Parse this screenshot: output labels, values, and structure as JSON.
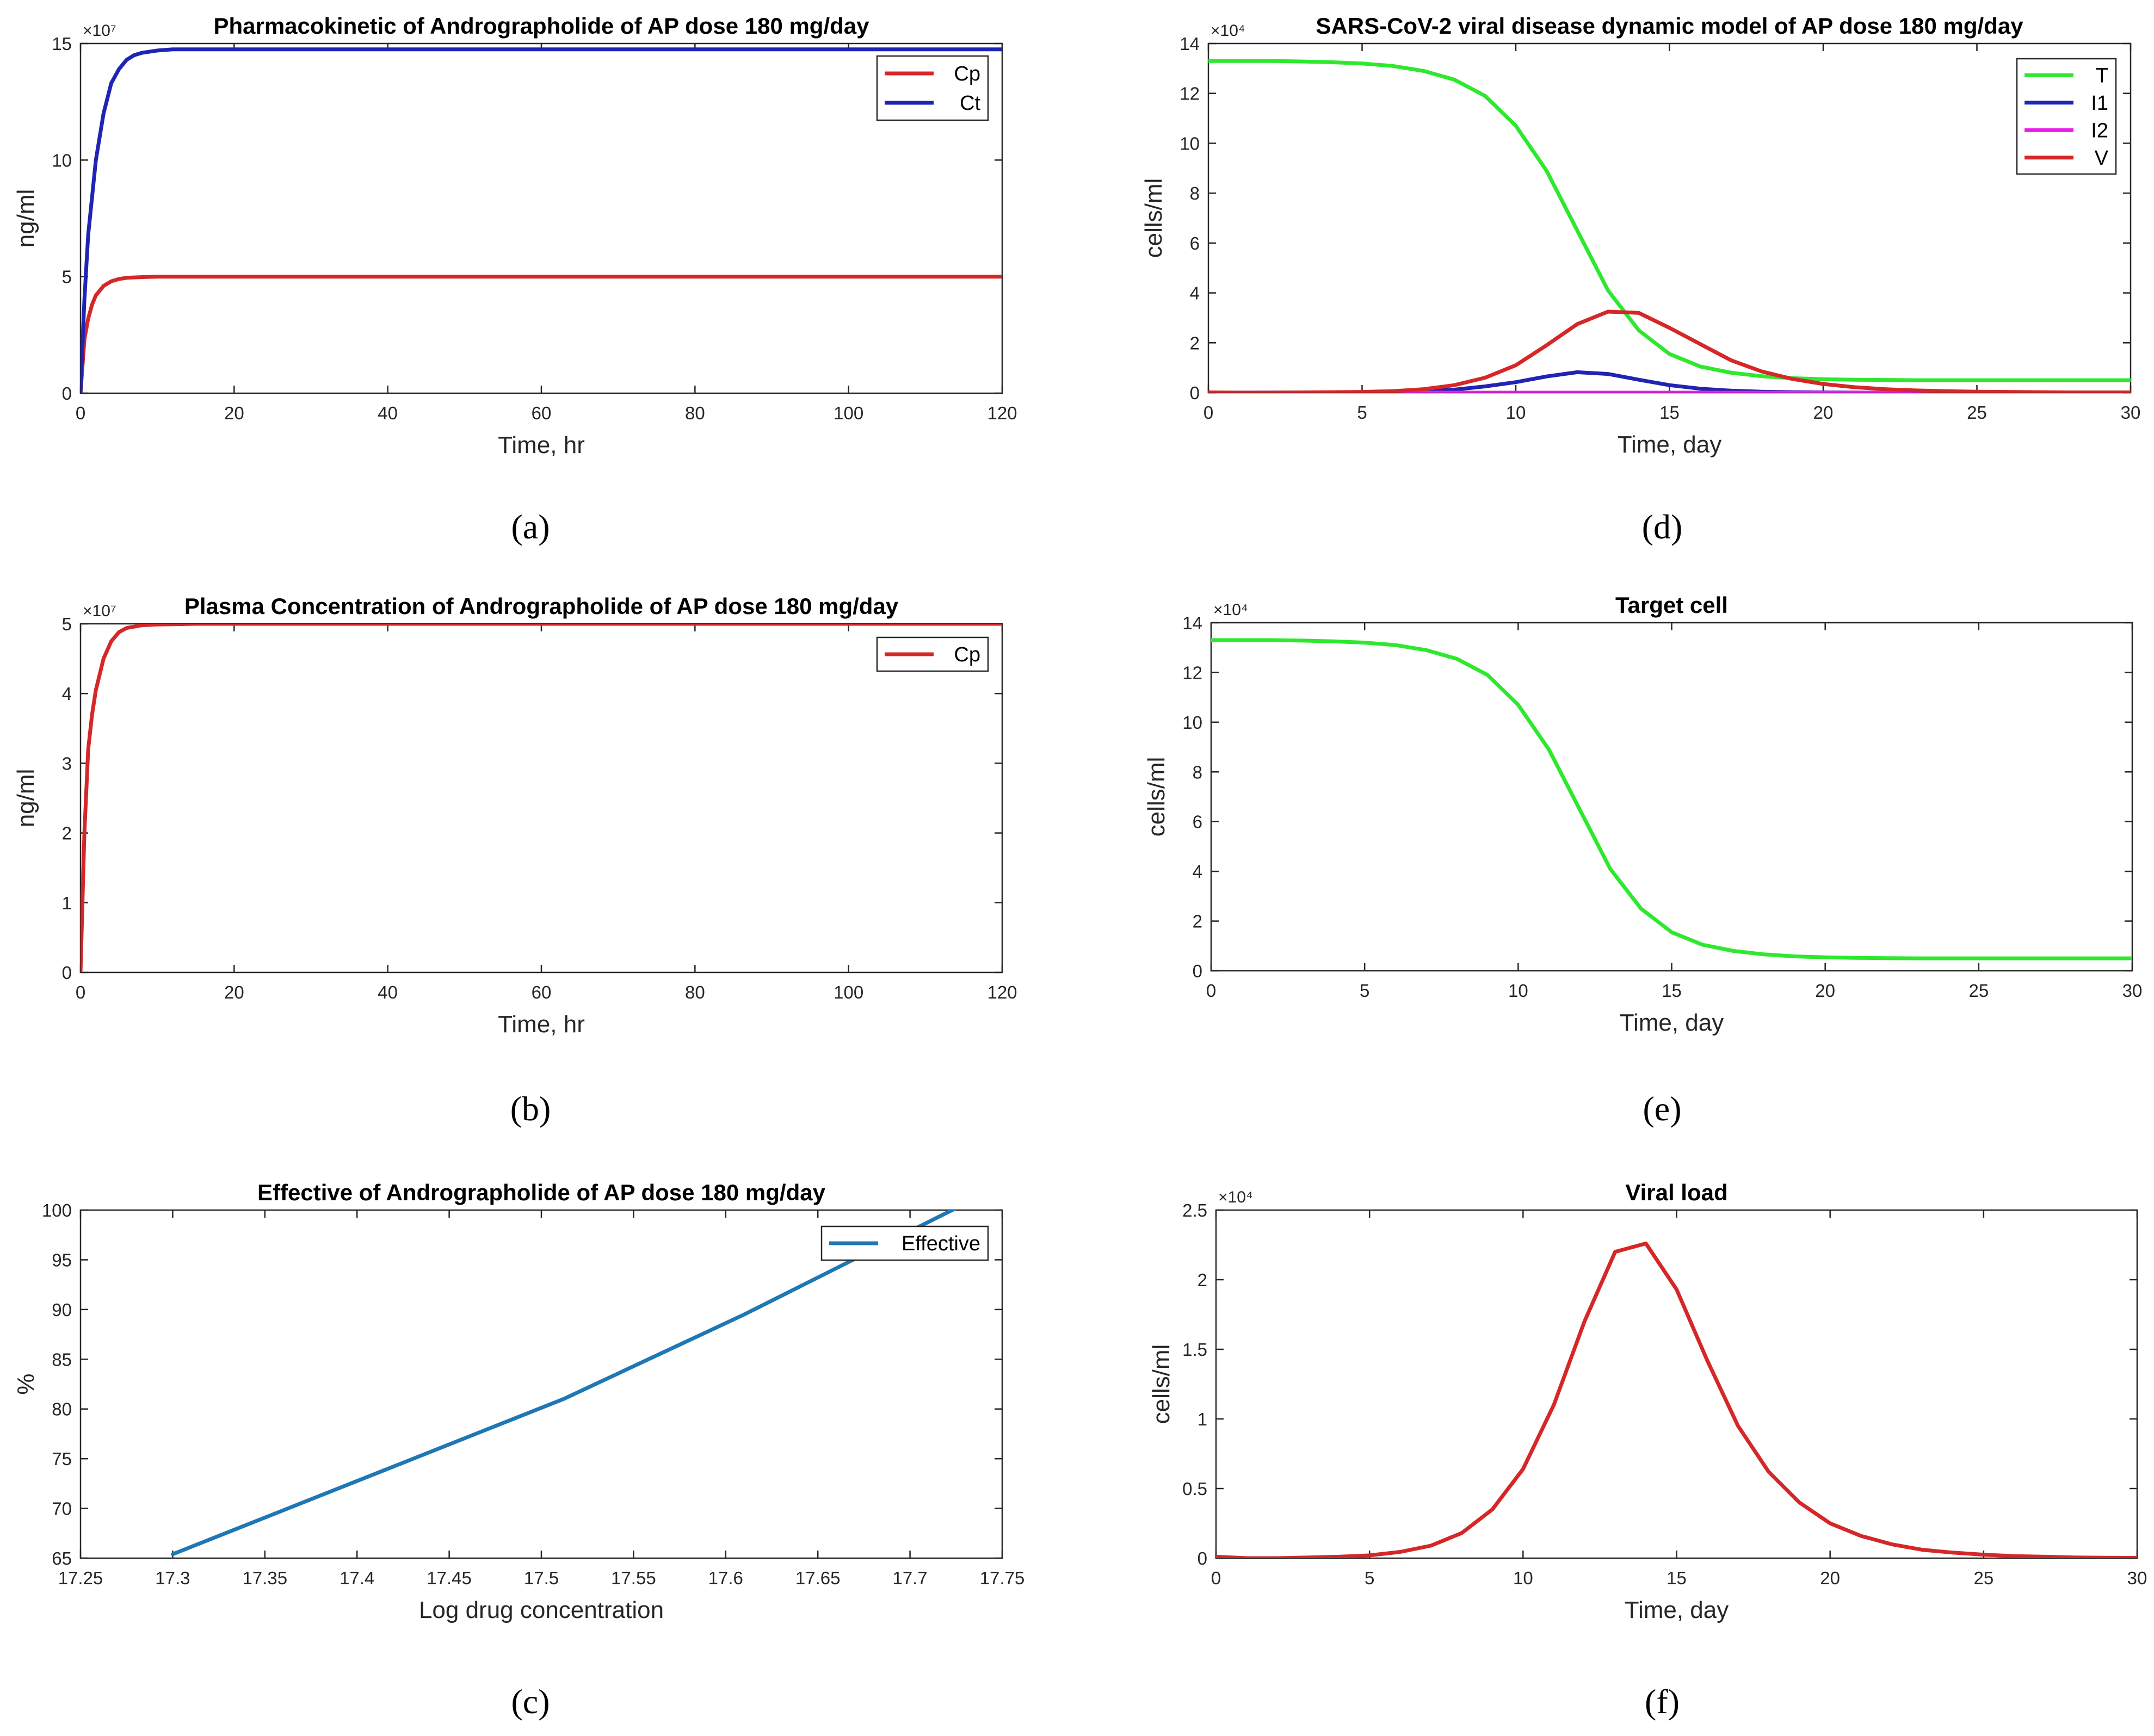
{
  "chart_data": [
    {
      "id": "a",
      "type": "line",
      "caption": "(a)",
      "title": "Pharmacokinetic of Andrographolide of AP dose 180 mg/day",
      "xlabel": "Time, hr",
      "ylabel": "ng/ml",
      "exponent_label": "×10⁷",
      "xlim": [
        0,
        120
      ],
      "ylim": [
        0,
        15
      ],
      "xticks": [
        0,
        20,
        40,
        60,
        80,
        100,
        120
      ],
      "yticks": [
        0,
        5,
        10,
        15
      ],
      "legend_position": "top-right",
      "series": [
        {
          "name": "Cp",
          "color": "#d62728",
          "x": [
            0,
            0.5,
            1,
            1.5,
            2,
            3,
            4,
            5,
            6,
            8,
            10,
            15,
            20,
            40,
            60,
            80,
            100,
            120
          ],
          "y": [
            0,
            2.3,
            3.2,
            3.8,
            4.2,
            4.6,
            4.8,
            4.9,
            4.95,
            4.98,
            5.0,
            5.0,
            5.0,
            5.0,
            5.0,
            5.0,
            5.0,
            5.0
          ]
        },
        {
          "name": "Ct",
          "color": "#1f24b4",
          "x": [
            0,
            0.5,
            1,
            2,
            3,
            4,
            5,
            6,
            7,
            8,
            10,
            12,
            15,
            20,
            40,
            60,
            80,
            100,
            120
          ],
          "y": [
            0,
            4,
            6.8,
            10.0,
            12.0,
            13.3,
            13.9,
            14.3,
            14.5,
            14.6,
            14.7,
            14.75,
            14.75,
            14.75,
            14.75,
            14.75,
            14.75,
            14.75,
            14.75
          ]
        }
      ]
    },
    {
      "id": "b",
      "type": "line",
      "caption": "(b)",
      "title": "Plasma Concentration of Andrographolide of AP dose 180 mg/day",
      "xlabel": "Time, hr",
      "ylabel": "ng/ml",
      "exponent_label": "×10⁷",
      "xlim": [
        0,
        120
      ],
      "ylim": [
        0,
        5
      ],
      "xticks": [
        0,
        20,
        40,
        60,
        80,
        100,
        120
      ],
      "yticks": [
        0,
        1,
        2,
        3,
        4,
        5
      ],
      "legend_position": "top-right",
      "series": [
        {
          "name": "Cp",
          "color": "#d62728",
          "x": [
            0,
            0.5,
            1,
            1.5,
            2,
            3,
            4,
            5,
            6,
            8,
            10,
            15,
            20,
            40,
            60,
            80,
            100,
            120
          ],
          "y": [
            0,
            2.0,
            3.2,
            3.7,
            4.05,
            4.5,
            4.75,
            4.88,
            4.94,
            4.98,
            4.99,
            5.0,
            5.0,
            5.0,
            5.0,
            5.0,
            5.0,
            5.0
          ]
        }
      ]
    },
    {
      "id": "c",
      "type": "line",
      "caption": "(c)",
      "title": "Effective of Andrographolide of AP dose 180 mg/day",
      "xlabel": "Log drug concentration",
      "ylabel": "%",
      "exponent_label": "",
      "xlim": [
        17.25,
        17.75
      ],
      "ylim": [
        65,
        100
      ],
      "xticks": [
        17.25,
        17.3,
        17.35,
        17.4,
        17.45,
        17.5,
        17.55,
        17.6,
        17.65,
        17.7,
        17.75
      ],
      "xticklabels": [
        "17.25",
        "17.3",
        "17.35",
        "17.4",
        "17.45",
        "17.5",
        "17.55",
        "17.6",
        "17.65",
        "17.7",
        "17.75"
      ],
      "yticks": [
        65,
        70,
        75,
        80,
        85,
        90,
        95,
        100
      ],
      "legend_position": "top-right",
      "series": [
        {
          "name": "Effective",
          "color": "#1f77b4",
          "x": [
            17.3,
            17.512,
            17.61,
            17.725
          ],
          "y": [
            65.4,
            81.0,
            89.5,
            100.2
          ]
        }
      ]
    },
    {
      "id": "d",
      "type": "line",
      "caption": "(d)",
      "title": "SARS-CoV-2 viral disease dynamic model of AP dose 180 mg/day",
      "xlabel": "Time, day",
      "ylabel": "cells/ml",
      "exponent_label": "×10⁴",
      "xlim": [
        0,
        30
      ],
      "ylim": [
        0,
        14
      ],
      "xticks": [
        0,
        5,
        10,
        15,
        20,
        25,
        30
      ],
      "yticks": [
        0,
        2,
        4,
        6,
        8,
        10,
        12,
        14
      ],
      "legend_position": "top-right",
      "series": [
        {
          "name": "T",
          "color": "#2ee82e",
          "x": [
            0,
            1,
            2,
            3,
            4,
            5,
            6,
            7,
            8,
            9,
            10,
            11,
            12,
            13,
            14,
            15,
            16,
            17,
            18,
            19,
            20,
            21,
            22,
            23,
            24,
            25,
            26,
            27,
            28,
            29,
            30
          ],
          "y": [
            13.3,
            13.3,
            13.3,
            13.28,
            13.25,
            13.2,
            13.1,
            12.9,
            12.55,
            11.9,
            10.7,
            8.9,
            6.5,
            4.1,
            2.5,
            1.55,
            1.05,
            0.8,
            0.66,
            0.58,
            0.54,
            0.52,
            0.51,
            0.5,
            0.5,
            0.5,
            0.5,
            0.5,
            0.5,
            0.5,
            0.5
          ]
        },
        {
          "name": "I1",
          "color": "#1f24b4",
          "x": [
            0,
            5,
            6,
            7,
            8,
            9,
            10,
            11,
            12,
            13,
            14,
            15,
            16,
            17,
            18,
            19,
            20,
            22,
            25,
            30
          ],
          "y": [
            0,
            0.01,
            0.03,
            0.06,
            0.12,
            0.25,
            0.42,
            0.65,
            0.82,
            0.75,
            0.52,
            0.3,
            0.16,
            0.08,
            0.04,
            0.02,
            0.01,
            0,
            0,
            0
          ]
        },
        {
          "name": "I2",
          "color": "#e81ee8",
          "x": [
            0,
            30
          ],
          "y": [
            0,
            0
          ]
        },
        {
          "name": "V",
          "color": "#d62728",
          "x": [
            0,
            1,
            2,
            3,
            4,
            5,
            6,
            7,
            8,
            9,
            10,
            11,
            12,
            13,
            14,
            15,
            16,
            17,
            18,
            19,
            20,
            21,
            22,
            23,
            24,
            25,
            26,
            27,
            28,
            29,
            30
          ],
          "y": [
            0.01,
            0.0,
            0.0,
            0.01,
            0.02,
            0.03,
            0.06,
            0.14,
            0.3,
            0.6,
            1.1,
            1.9,
            2.75,
            3.25,
            3.2,
            2.6,
            1.95,
            1.3,
            0.85,
            0.55,
            0.35,
            0.22,
            0.14,
            0.09,
            0.06,
            0.04,
            0.03,
            0.02,
            0.01,
            0.01,
            0.01
          ]
        }
      ]
    },
    {
      "id": "e",
      "type": "line",
      "caption": "(e)",
      "title": "Target cell",
      "xlabel": "Time, day",
      "ylabel": "cells/ml",
      "exponent_label": "×10⁴",
      "xlim": [
        0,
        30
      ],
      "ylim": [
        0,
        14
      ],
      "xticks": [
        0,
        5,
        10,
        15,
        20,
        25,
        30
      ],
      "yticks": [
        0,
        2,
        4,
        6,
        8,
        10,
        12,
        14
      ],
      "legend_position": "none",
      "series": [
        {
          "name": "T",
          "color": "#2ee82e",
          "x": [
            0,
            1,
            2,
            3,
            4,
            5,
            6,
            7,
            8,
            9,
            10,
            11,
            12,
            13,
            14,
            15,
            16,
            17,
            18,
            19,
            20,
            21,
            22,
            23,
            24,
            25,
            26,
            27,
            28,
            29,
            30
          ],
          "y": [
            13.3,
            13.3,
            13.3,
            13.28,
            13.25,
            13.2,
            13.1,
            12.9,
            12.55,
            11.9,
            10.7,
            8.9,
            6.5,
            4.1,
            2.5,
            1.55,
            1.05,
            0.8,
            0.66,
            0.58,
            0.54,
            0.52,
            0.51,
            0.5,
            0.5,
            0.5,
            0.5,
            0.5,
            0.5,
            0.5,
            0.5
          ]
        }
      ]
    },
    {
      "id": "f",
      "type": "line",
      "caption": "(f)",
      "title": "Viral load",
      "xlabel": "Time, day",
      "ylabel": "cells/ml",
      "exponent_label": "×10⁴",
      "xlim": [
        0,
        30
      ],
      "ylim": [
        0,
        2.5
      ],
      "xticks": [
        0,
        5,
        10,
        15,
        20,
        25,
        30
      ],
      "yticks": [
        0,
        0.5,
        1,
        1.5,
        2,
        2.5
      ],
      "yticklabels": [
        "0",
        "0.5",
        "1",
        "1.5",
        "2",
        "2.5"
      ],
      "legend_position": "none",
      "series": [
        {
          "name": "V",
          "color": "#d62728",
          "x": [
            0,
            1,
            2,
            3,
            4,
            5,
            6,
            7,
            8,
            9,
            10,
            11,
            12,
            13,
            14,
            15,
            16,
            17,
            18,
            19,
            20,
            21,
            22,
            23,
            24,
            25,
            26,
            27,
            28,
            29,
            30
          ],
          "y": [
            0.01,
            0.0,
            0.0,
            0.005,
            0.01,
            0.02,
            0.045,
            0.09,
            0.18,
            0.35,
            0.64,
            1.1,
            1.7,
            2.2,
            2.26,
            1.93,
            1.42,
            0.95,
            0.62,
            0.4,
            0.25,
            0.16,
            0.1,
            0.06,
            0.04,
            0.025,
            0.015,
            0.01,
            0.005,
            0.003,
            0.002
          ]
        }
      ]
    }
  ]
}
